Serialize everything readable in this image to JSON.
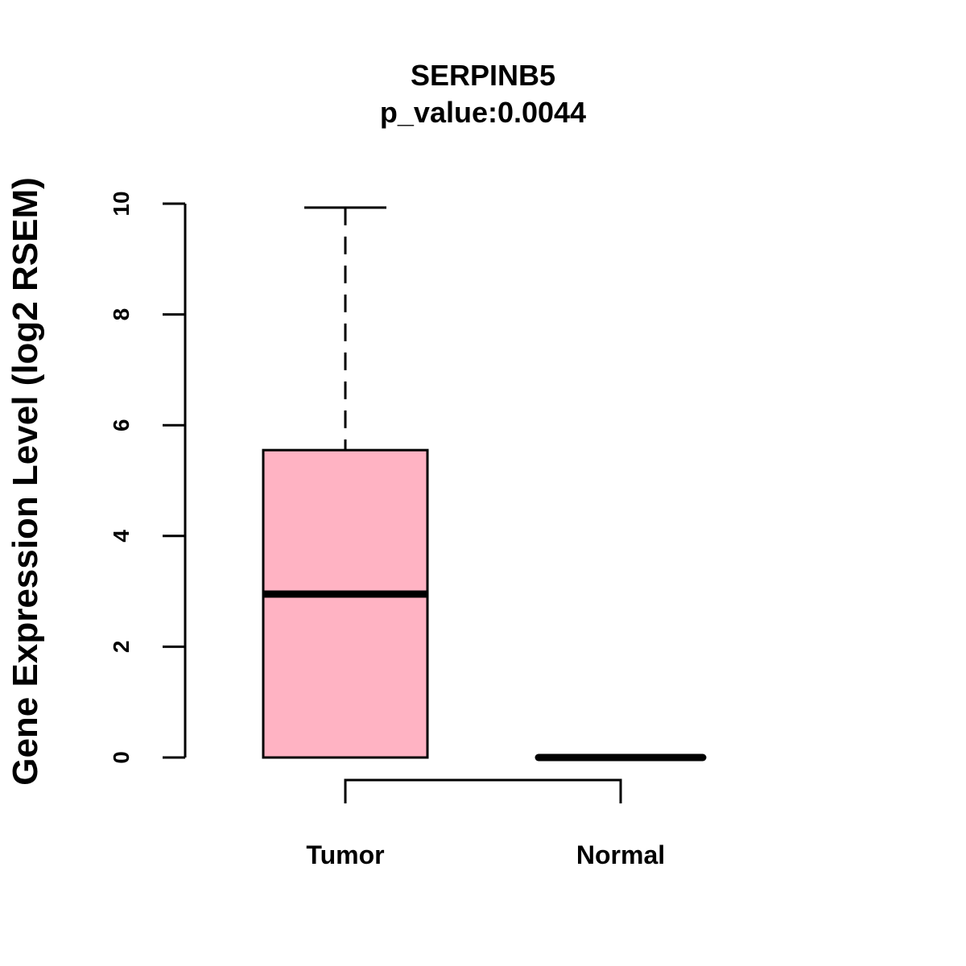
{
  "chart_data": {
    "type": "boxplot",
    "title": "SERPINB5",
    "subtitle": "p_value:0.0044",
    "xlabel": "",
    "ylabel": "Gene Expression Level (log2 RSEM)",
    "ylim": [
      0,
      10
    ],
    "yticks": [
      0,
      2,
      4,
      6,
      8,
      10
    ],
    "categories": [
      "Tumor",
      "Normal"
    ],
    "boxes": [
      {
        "name": "Tumor",
        "min": 0,
        "q1": 0,
        "median": 2.95,
        "q3": 5.55,
        "max": 9.93,
        "color": "#FFB3C3"
      },
      {
        "name": "Normal",
        "min": 0,
        "q1": 0,
        "median": 0,
        "q3": 0,
        "max": 0,
        "color": "#FFB3C3"
      }
    ],
    "comparison_bracket": [
      "Tumor",
      "Normal"
    ]
  }
}
